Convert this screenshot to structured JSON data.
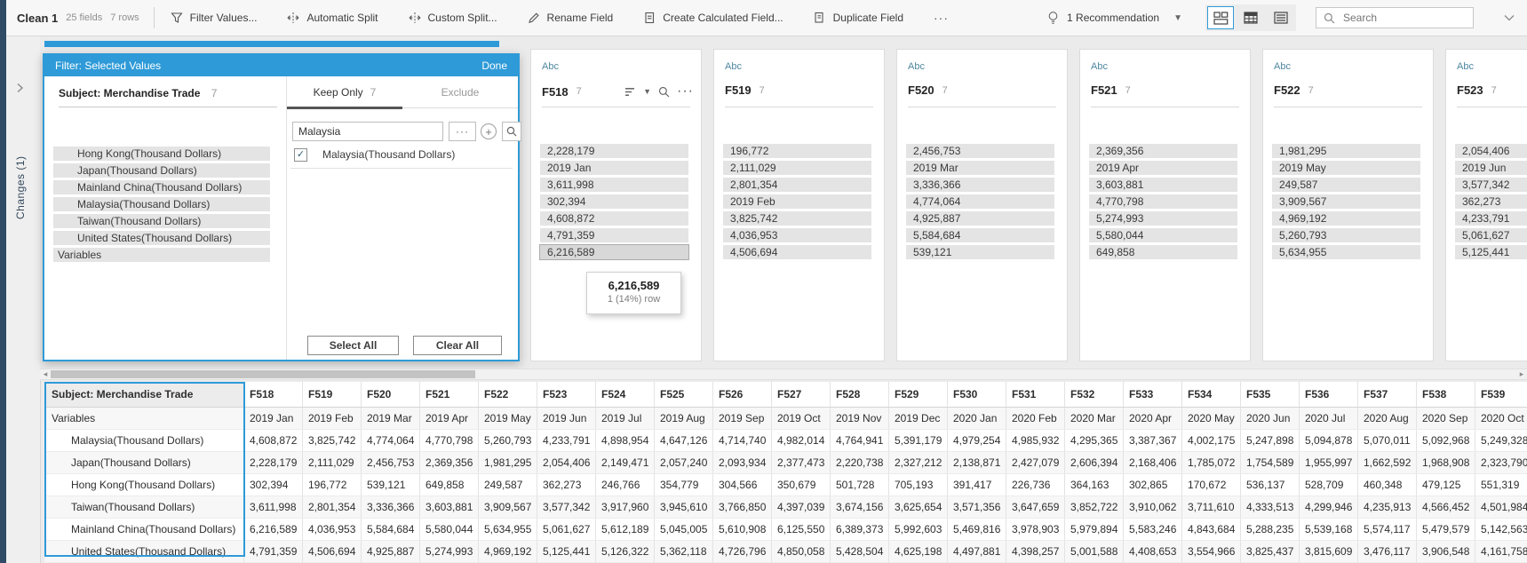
{
  "colors": {
    "accent": "#2e9ad8",
    "field_type_text": "#4e87a0",
    "selection_border": "#2e9ad8",
    "value_bar": "#e4e4e4"
  },
  "toolbar": {
    "step_name": "Clean 1",
    "fields_count": "25 fields",
    "rows_count": "7 rows",
    "filter_values": "Filter Values...",
    "automatic_split": "Automatic Split",
    "custom_split": "Custom Split...",
    "rename_field": "Rename Field",
    "create_calc_field": "Create Calculated Field...",
    "duplicate_field": "Duplicate Field",
    "more": "···",
    "recommendation": "1 Recommendation",
    "search_placeholder": "Search"
  },
  "left_rail": {
    "changes_label": "Changes (1)",
    "expand_chevron": "›"
  },
  "filter_dialog": {
    "title": "Filter: Selected Values",
    "done": "Done",
    "field_name": "Subject: Merchandise Trade",
    "field_count": "7",
    "field_values": [
      {
        "label": "Hong Kong(Thousand Dollars)",
        "indent": true
      },
      {
        "label": "Japan(Thousand Dollars)",
        "indent": true
      },
      {
        "label": "Mainland China(Thousand Dollars)",
        "indent": true
      },
      {
        "label": "Malaysia(Thousand Dollars)",
        "indent": true
      },
      {
        "label": "Taiwan(Thousand Dollars)",
        "indent": true
      },
      {
        "label": "United States(Thousand Dollars)",
        "indent": true
      },
      {
        "label": "Variables",
        "indent": false
      }
    ],
    "keep_only_tab": "Keep Only",
    "keep_only_count": "7",
    "exclude_tab": "Exclude",
    "search_value": "Malaysia",
    "result_checkbox_checked": "✓",
    "result_label": "Malaysia(Thousand Dollars)",
    "more": "···",
    "select_all": "Select All",
    "clear_all": "Clear All"
  },
  "profile_cards": [
    {
      "type": "Abc",
      "name": "F518",
      "count": "7",
      "show_tools": true,
      "hover_value_index": 6,
      "values": [
        "2,228,179",
        "2019 Jan",
        "3,611,998",
        "302,394",
        "4,608,872",
        "4,791,359",
        "6,216,589"
      ]
    },
    {
      "type": "Abc",
      "name": "F519",
      "count": "7",
      "show_tools": false,
      "hover_value_index": -1,
      "values": [
        "196,772",
        "2,111,029",
        "2,801,354",
        "2019 Feb",
        "3,825,742",
        "4,036,953",
        "4,506,694"
      ]
    },
    {
      "type": "Abc",
      "name": "F520",
      "count": "7",
      "show_tools": false,
      "hover_value_index": -1,
      "values": [
        "2,456,753",
        "2019 Mar",
        "3,336,366",
        "4,774,064",
        "4,925,887",
        "5,584,684",
        "539,121"
      ]
    },
    {
      "type": "Abc",
      "name": "F521",
      "count": "7",
      "show_tools": false,
      "hover_value_index": -1,
      "values": [
        "2,369,356",
        "2019 Apr",
        "3,603,881",
        "4,770,798",
        "5,274,993",
        "5,580,044",
        "649,858"
      ]
    },
    {
      "type": "Abc",
      "name": "F522",
      "count": "7",
      "show_tools": false,
      "hover_value_index": -1,
      "values": [
        "1,981,295",
        "2019 May",
        "249,587",
        "3,909,567",
        "4,969,192",
        "5,260,793",
        "5,634,955"
      ]
    },
    {
      "type": "Abc",
      "name": "F523",
      "count": "7",
      "show_tools": false,
      "hover_value_index": -1,
      "values": [
        "2,054,406",
        "2019 Jun",
        "3,577,342",
        "362,273",
        "4,233,791",
        "5,061,627",
        "5,125,441"
      ]
    }
  ],
  "tooltip": {
    "value": "6,216,589",
    "detail": "1 (14%) row"
  },
  "data_grid": {
    "key_header": "Subject: Merchandise Trade",
    "field_headers": [
      "F518",
      "F519",
      "F520",
      "F521",
      "F522",
      "F523",
      "F524",
      "F525",
      "F526",
      "F527",
      "F528",
      "F529",
      "F530",
      "F531",
      "F532",
      "F533",
      "F534",
      "F535",
      "F536",
      "F537",
      "F538",
      "F539"
    ],
    "rows": [
      {
        "label": "Variables",
        "indent": false,
        "values": [
          "2019 Jan",
          "2019 Feb",
          "2019 Mar",
          "2019 Apr",
          "2019 May",
          "2019 Jun",
          "2019 Jul",
          "2019 Aug",
          "2019 Sep",
          "2019 Oct",
          "2019 Nov",
          "2019 Dec",
          "2020 Jan",
          "2020 Feb",
          "2020 Mar",
          "2020 Apr",
          "2020 May",
          "2020 Jun",
          "2020 Jul",
          "2020 Aug",
          "2020 Sep",
          "2020 Oct"
        ]
      },
      {
        "label": "Malaysia(Thousand Dollars)",
        "indent": true,
        "values": [
          "4,608,872",
          "3,825,742",
          "4,774,064",
          "4,770,798",
          "5,260,793",
          "4,233,791",
          "4,898,954",
          "4,647,126",
          "4,714,740",
          "4,982,014",
          "4,764,941",
          "5,391,179",
          "4,979,254",
          "4,985,932",
          "4,295,365",
          "3,387,367",
          "4,002,175",
          "5,247,898",
          "5,094,878",
          "5,070,011",
          "5,092,968",
          "5,249,328"
        ]
      },
      {
        "label": "Japan(Thousand Dollars)",
        "indent": true,
        "values": [
          "2,228,179",
          "2,111,029",
          "2,456,753",
          "2,369,356",
          "1,981,295",
          "2,054,406",
          "2,149,471",
          "2,057,240",
          "2,093,934",
          "2,377,473",
          "2,220,738",
          "2,327,212",
          "2,138,871",
          "2,427,079",
          "2,606,394",
          "2,168,406",
          "1,785,072",
          "1,754,589",
          "1,955,997",
          "1,662,592",
          "1,968,908",
          "2,323,790"
        ]
      },
      {
        "label": "Hong Kong(Thousand Dollars)",
        "indent": true,
        "values": [
          "302,394",
          "196,772",
          "539,121",
          "649,858",
          "249,587",
          "362,273",
          "246,766",
          "354,779",
          "304,566",
          "350,679",
          "501,728",
          "705,193",
          "391,417",
          "226,736",
          "364,163",
          "302,865",
          "170,672",
          "536,137",
          "528,709",
          "460,348",
          "479,125",
          "551,319"
        ]
      },
      {
        "label": "Taiwan(Thousand Dollars)",
        "indent": true,
        "values": [
          "3,611,998",
          "2,801,354",
          "3,336,366",
          "3,603,881",
          "3,909,567",
          "3,577,342",
          "3,917,960",
          "3,945,610",
          "3,766,850",
          "4,397,039",
          "3,674,156",
          "3,625,654",
          "3,571,356",
          "3,647,659",
          "3,852,722",
          "3,910,062",
          "3,711,610",
          "4,333,513",
          "4,299,946",
          "4,235,913",
          "4,566,452",
          "4,501,984"
        ]
      },
      {
        "label": "Mainland China(Thousand Dollars)",
        "indent": true,
        "values": [
          "6,216,589",
          "4,036,953",
          "5,584,684",
          "5,580,044",
          "5,634,955",
          "5,061,627",
          "5,612,189",
          "5,045,005",
          "5,610,908",
          "6,125,550",
          "6,389,373",
          "5,992,603",
          "5,469,816",
          "3,978,903",
          "5,979,894",
          "5,583,246",
          "4,843,684",
          "5,288,235",
          "5,539,168",
          "5,574,117",
          "5,479,579",
          "5,142,563"
        ]
      },
      {
        "label": "United States(Thousand Dollars)",
        "indent": true,
        "values": [
          "4,791,359",
          "4,506,694",
          "4,925,887",
          "5,274,993",
          "4,969,192",
          "5,125,441",
          "5,126,322",
          "5,362,118",
          "4,726,796",
          "4,850,058",
          "5,428,504",
          "4,625,198",
          "4,497,881",
          "4,398,257",
          "5,001,588",
          "4,408,653",
          "3,554,966",
          "3,825,437",
          "3,815,609",
          "3,476,117",
          "3,906,548",
          "4,161,758"
        ]
      }
    ]
  }
}
